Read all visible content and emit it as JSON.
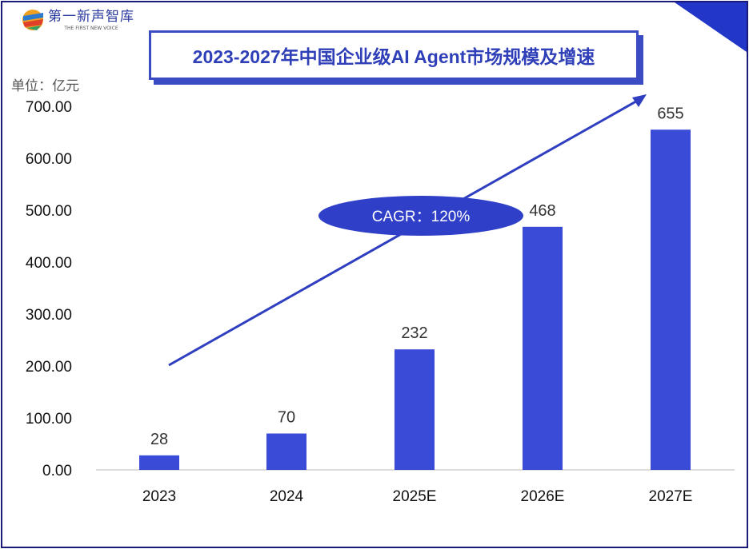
{
  "logo": {
    "name": "第一新声智库",
    "tagline": "THE FIRST NEW VOICE"
  },
  "unit": "单位：亿元",
  "annotation": "CAGR：120%",
  "colors": {
    "bar": "#3a4bd8",
    "frame": "#1a1a7a",
    "title": "#2f3fb8"
  },
  "chart_data": {
    "type": "bar",
    "title": "2023-2027年中国企业级AI Agent市场规模及增速",
    "categories": [
      "2023",
      "2024",
      "2025E",
      "2026E",
      "2027E"
    ],
    "values": [
      28,
      70,
      232,
      468,
      655
    ],
    "data_labels": [
      "28",
      "70",
      "232",
      "468",
      "655"
    ],
    "ylabel": "单位：亿元",
    "ylim": [
      0,
      700
    ],
    "yticks": [
      "0.00",
      "100.00",
      "200.00",
      "300.00",
      "400.00",
      "500.00",
      "600.00",
      "700.00"
    ],
    "grid": false,
    "annotation": "CAGR：120%"
  }
}
